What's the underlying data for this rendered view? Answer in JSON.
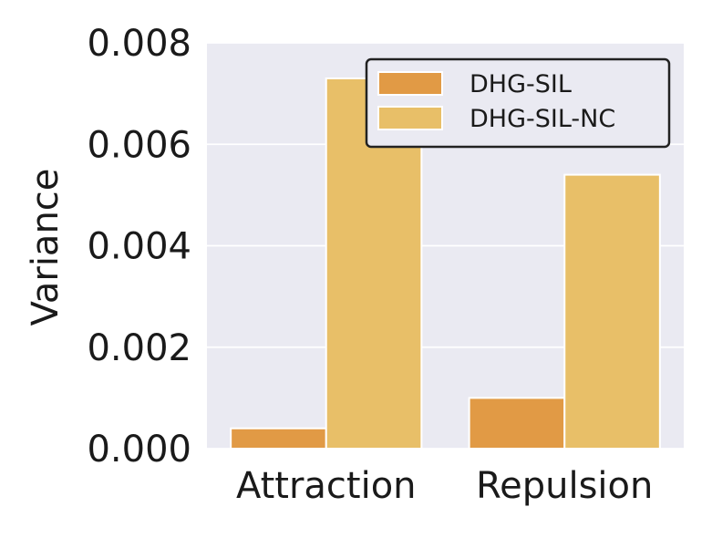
{
  "chart_data": {
    "type": "bar",
    "title": "",
    "xlabel": "",
    "ylabel": "Variance",
    "categories": [
      "Attraction",
      "Repulsion"
    ],
    "series": [
      {
        "name": "DHG-SIL",
        "values": [
          0.0004,
          0.001
        ],
        "color": "#E19A45"
      },
      {
        "name": "DHG-SIL-NC",
        "values": [
          0.0073,
          0.0054
        ],
        "color": "#E8BF68"
      }
    ],
    "ylim": [
      0,
      0.008
    ],
    "yticks": [
      "0.000",
      "0.002",
      "0.004",
      "0.006",
      "0.008"
    ],
    "legend": {
      "position": "top-right",
      "items": [
        "DHG-SIL",
        "DHG-SIL-NC"
      ]
    },
    "grid": true,
    "style": {
      "plot_background": "#EAEAF2",
      "grid_color": "#FFFFFF",
      "legend_border": "#222222"
    }
  }
}
